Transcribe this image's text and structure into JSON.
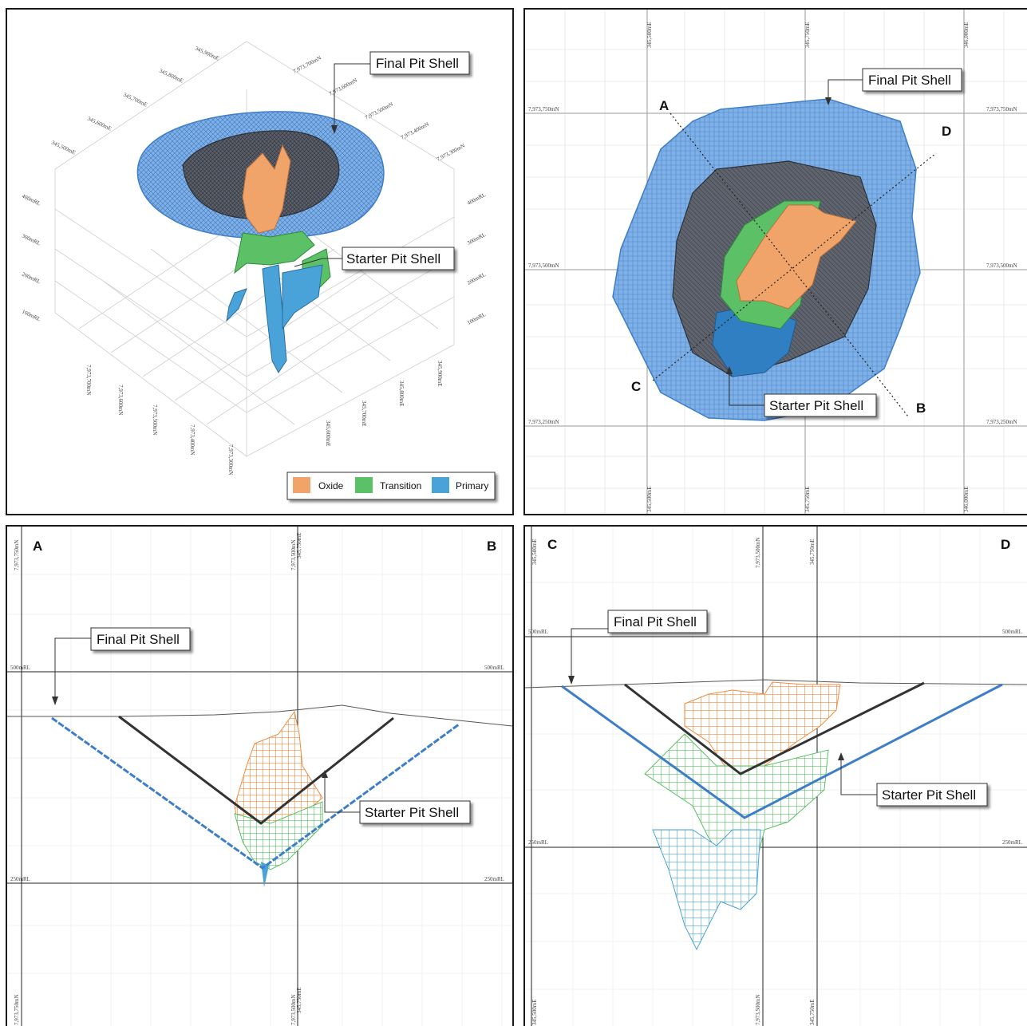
{
  "colors": {
    "oxide": "#f0a46a",
    "transition": "#5cc066",
    "primary": "#4aa3d8",
    "final_shell": "#3e7ec9",
    "starter_shell": "#404650"
  },
  "panel_3d": {
    "callout_final": "Final Pit Shell",
    "callout_starter": "Starter Pit Shell",
    "easting_labels": [
      "345,500mE",
      "345,600mE",
      "345,700mE",
      "345,800mE",
      "345,900mE"
    ],
    "northing_labels": [
      "7,973,700mN",
      "7,973,600mN",
      "7,973,500mN",
      "7,973,400mN",
      "7,973,300mN"
    ],
    "rl_left": [
      "400mRL",
      "300mRL",
      "200mRL",
      "100mRL"
    ],
    "rl_right": [
      "400mRL",
      "300mRL",
      "200mRL",
      "100mRL"
    ],
    "bottom_northing": [
      "7,973,700mN",
      "7,973,600mN",
      "7,973,500mN",
      "7,973,400mN",
      "7,973,300mN"
    ],
    "bottom_easting": [
      "345,900mE",
      "345,800mE",
      "345,700mE",
      "345,600mE"
    ],
    "legend": [
      {
        "label": "Oxide",
        "icon": "oxide-swatch"
      },
      {
        "label": "Transition",
        "icon": "transition-swatch"
      },
      {
        "label": "Primary",
        "icon": "primary-swatch"
      }
    ]
  },
  "panel_plan": {
    "callout_final": "Final Pit Shell",
    "callout_starter": "Starter Pit Shell",
    "top_labels": [
      "345,500mE",
      "345,750mE",
      "346,000mE"
    ],
    "bottom_labels": [
      "345,500mE",
      "345,750mE",
      "346,000mE"
    ],
    "left_labels": [
      "7,973,750mN",
      "7,973,500mN",
      "7,973,250mN"
    ],
    "right_labels": [
      "7,973,750mN",
      "7,973,500mN",
      "7,973,250mN"
    ],
    "section_letters": {
      "a": "A",
      "b": "B",
      "c": "C",
      "d": "D"
    }
  },
  "panel_ab": {
    "start": "A",
    "end": "B",
    "callout_final": "Final Pit Shell",
    "callout_starter": "Starter Pit Shell",
    "rl_labels": [
      "500mRL",
      "250mRL"
    ],
    "top_labels": [
      "7,973,750mN",
      "7,973,500mN",
      "345,750mE"
    ],
    "bottom_labels": [
      "7,973,750mN",
      "7,973,500mN",
      "345,750mE"
    ]
  },
  "panel_cd": {
    "start": "C",
    "end": "D",
    "callout_final": "Final Pit Shell",
    "callout_starter": "Starter Pit Shell",
    "rl_labels": [
      "500mRL",
      "250mRL"
    ],
    "top_labels": [
      "345,500mE",
      "7,973,500mN",
      "345,750mE"
    ],
    "bottom_labels": [
      "345,500mE",
      "7,973,500mN",
      "345,750mE"
    ]
  }
}
